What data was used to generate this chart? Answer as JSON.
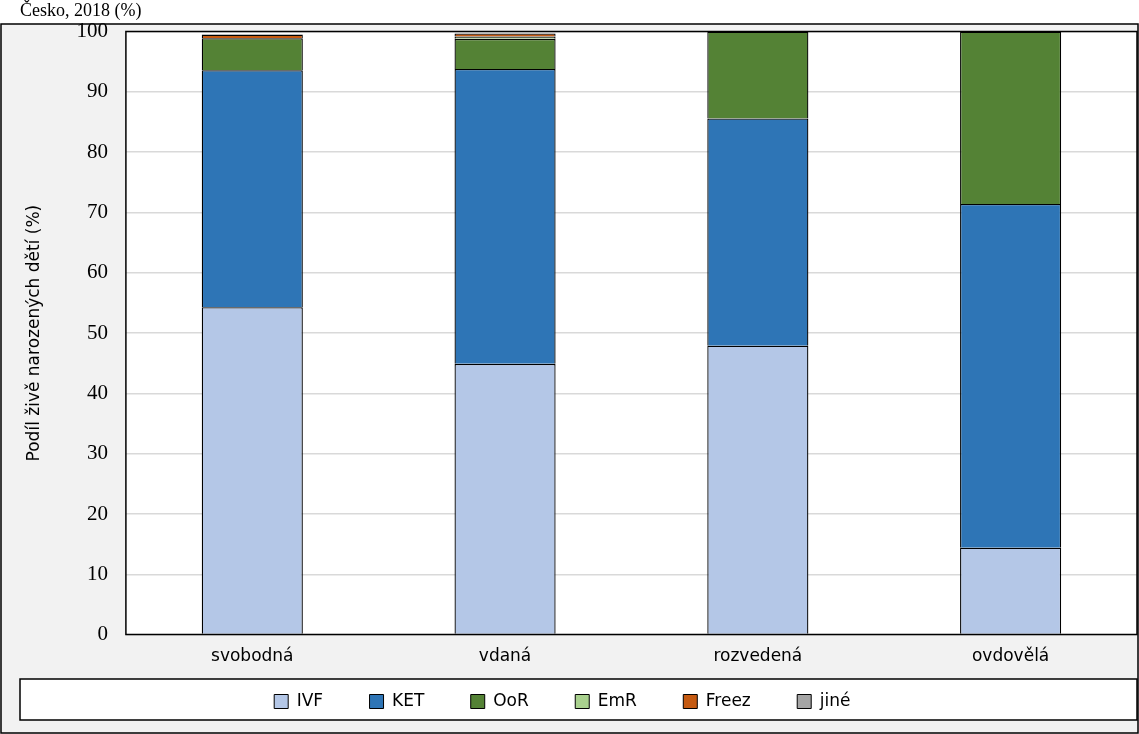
{
  "chart_data": {
    "type": "bar",
    "stacked": true,
    "title": "Česko, 2018 (%)",
    "ylabel": "Podíl živě narozených dětí (%)",
    "categories": [
      "svobodná",
      "vdaná",
      "rozvedená",
      "ovdovělá"
    ],
    "series": [
      {
        "name": "IVF",
        "color": "#b4c7e7",
        "values": [
          54.3,
          44.9,
          47.9,
          14.4
        ]
      },
      {
        "name": "KET",
        "color": "#2e75b6",
        "values": [
          39.3,
          48.9,
          37.7,
          57.0
        ]
      },
      {
        "name": "OoR",
        "color": "#548235",
        "values": [
          5.3,
          5.0,
          14.4,
          28.6
        ]
      },
      {
        "name": "EmR",
        "color": "#a9d18e",
        "values": [
          null,
          0.4,
          0,
          0
        ]
      },
      {
        "name": "Freez",
        "color": "#c55a11",
        "values": [
          0.6,
          0.5,
          0,
          0
        ]
      },
      {
        "name": "jiné",
        "color": "#a5a5a5",
        "values": [
          null,
          null,
          0,
          0
        ]
      }
    ],
    "ylim": [
      0,
      100
    ],
    "yticks": [
      0,
      10,
      20,
      30,
      40,
      50,
      60,
      70,
      80,
      90,
      100
    ],
    "grid": "y",
    "legend": "bottom"
  }
}
